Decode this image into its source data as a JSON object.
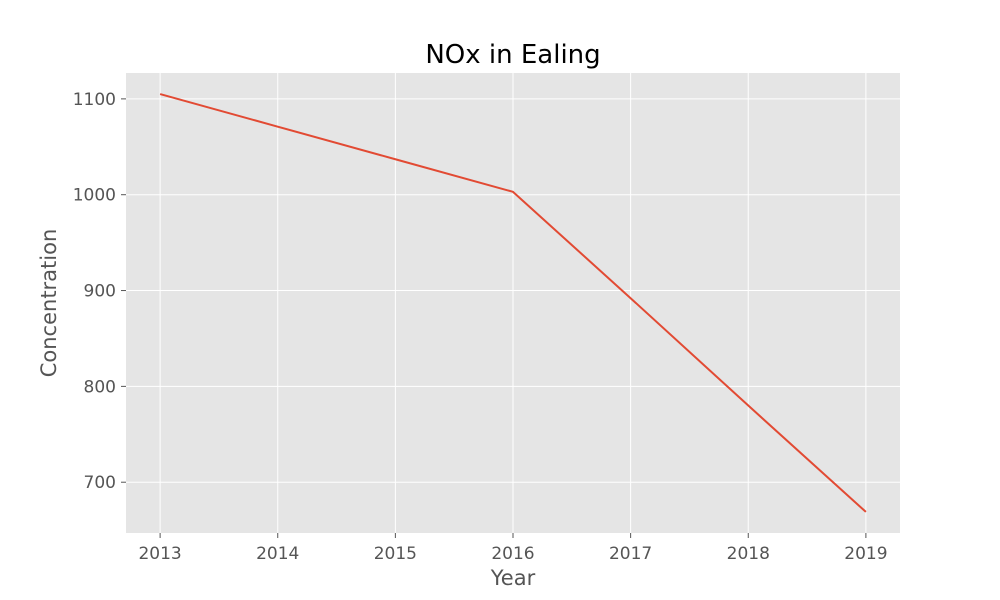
{
  "chart_data": {
    "type": "line",
    "title": "NOx in Ealing",
    "xlabel": "Year",
    "ylabel": "Concentration",
    "x": [
      2013,
      2014,
      2015,
      2016,
      2017,
      2018,
      2019
    ],
    "series": [
      {
        "values": [
          1105,
          1071,
          1037,
          1003,
          892,
          780,
          669
        ]
      }
    ],
    "xticks": [
      "2013",
      "2014",
      "2015",
      "2016",
      "2017",
      "2018",
      "2019"
    ],
    "yticks": [
      "700",
      "800",
      "900",
      "1000",
      "1100"
    ],
    "xlim": [
      2012.71,
      2019.29
    ],
    "ylim": [
      647,
      1127
    ],
    "grid": true,
    "legend": "none",
    "colors": {
      "background": "#e5e5e5",
      "grid": "#ffffff",
      "line": "#e24a33"
    }
  }
}
